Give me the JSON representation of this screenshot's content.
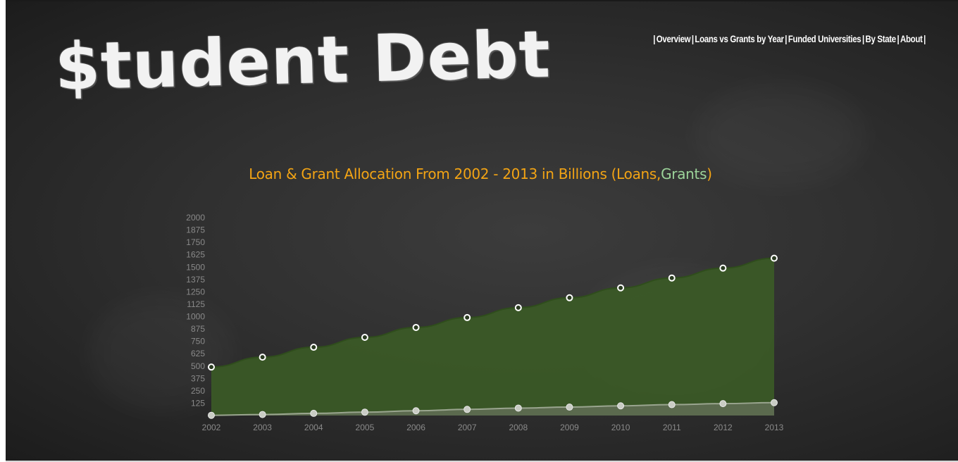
{
  "app": {
    "logo_text": "$tudent Debt"
  },
  "nav": {
    "items": [
      {
        "label": "Overview"
      },
      {
        "label": "Loans vs Grants by Year"
      },
      {
        "label": "Funded Universities"
      },
      {
        "label": "By State"
      },
      {
        "label": "About"
      }
    ]
  },
  "chart_title": {
    "main": "Loan & Grant Allocation From 2002 - 2013 in Billions (Loans,",
    "grants": "Grants",
    "close": ")"
  },
  "colors": {
    "title_orange": "#f3a414",
    "grants_green": "#9cd49a",
    "loans_fill": "#3b5a26",
    "grants_fill": "#5d6b50"
  },
  "chart_data": {
    "type": "area",
    "title": "Loan & Grant Allocation From 2002 - 2013 in Billions (Loans,Grants)",
    "x": [
      "2002",
      "2003",
      "2004",
      "2005",
      "2006",
      "2007",
      "2008",
      "2009",
      "2010",
      "2011",
      "2012",
      "2013"
    ],
    "series": [
      {
        "name": "Loans",
        "values": [
          490,
          590,
          690,
          790,
          890,
          990,
          1090,
          1190,
          1290,
          1390,
          1490,
          1590
        ]
      },
      {
        "name": "Grants",
        "values": [
          2,
          10,
          22,
          34,
          48,
          62,
          75,
          85,
          98,
          110,
          120,
          130
        ]
      }
    ],
    "yticks": [
      125,
      250,
      375,
      500,
      625,
      750,
      875,
      1000,
      1125,
      1250,
      1375,
      1500,
      1625,
      1750,
      1875,
      2000
    ],
    "ylim": [
      0,
      2000
    ],
    "grid": false,
    "legend": "in title"
  }
}
